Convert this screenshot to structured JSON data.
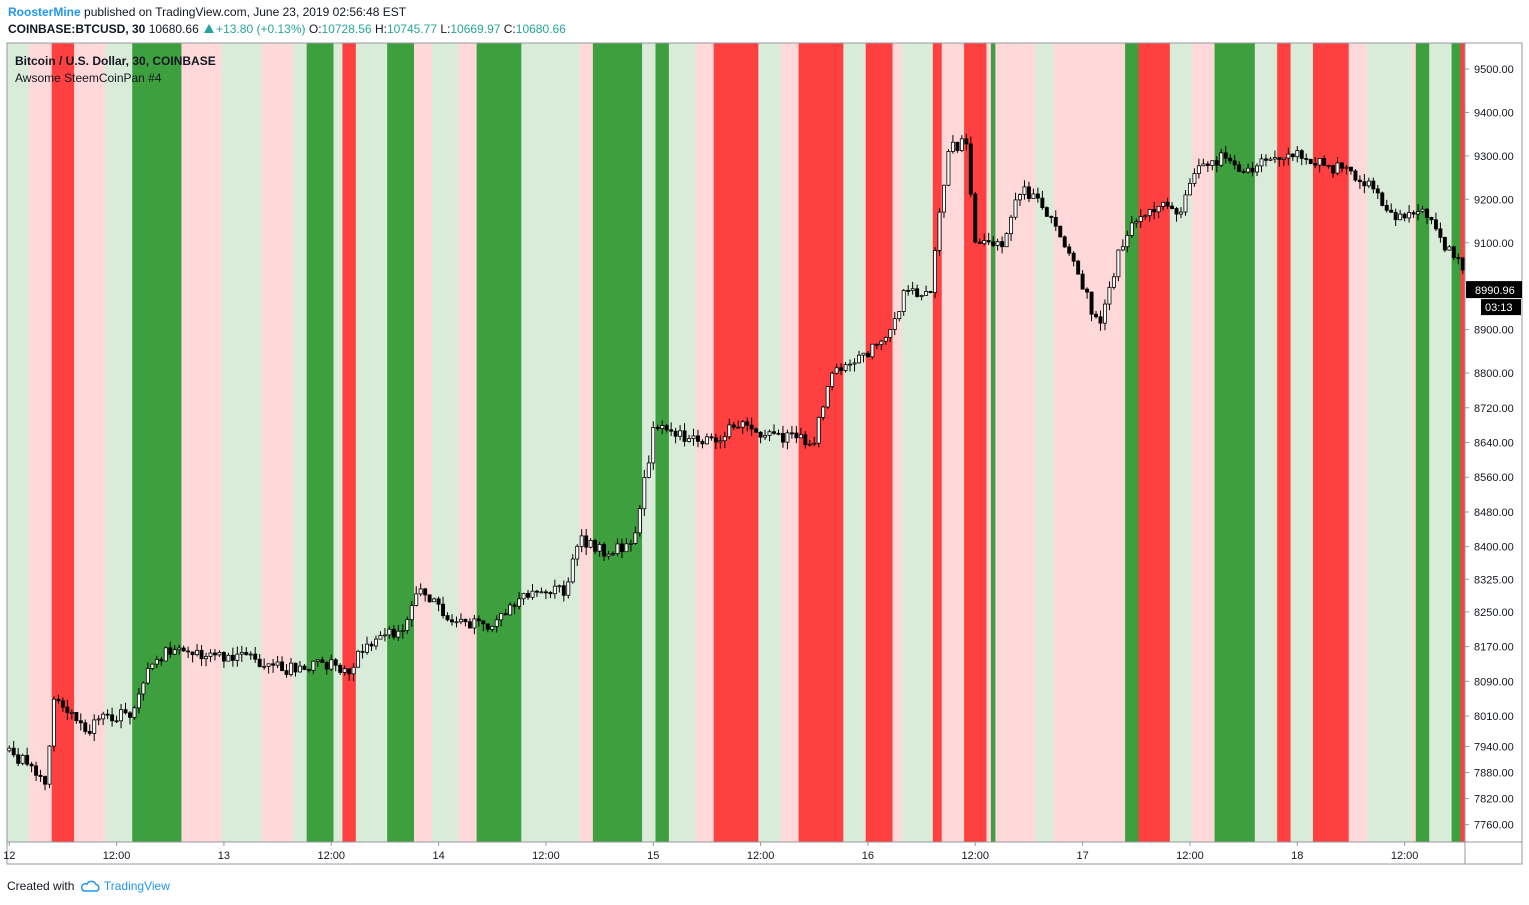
{
  "header": {
    "author": "RoosterMine",
    "published_text": "published on TradingView.com, June 23, 2019 02:56:48 EST",
    "symbol": "COINBASE:BTCUSD, 30",
    "last": "10680.66",
    "change": "+13.80 (+0.13%)",
    "o_label": "O:",
    "o_value": "10728.56",
    "h_label": "H:",
    "h_value": "10745.77",
    "l_label": "L:",
    "l_value": "10669.97",
    "c_label": "C:",
    "c_value": "10680.66"
  },
  "legend": {
    "title": "Bitcoin / U.S. Dollar, 30, COINBASE",
    "indicator": "Awsome SteemCoinPan #4"
  },
  "footer": {
    "created_with": "Created with",
    "brand": "TradingView"
  },
  "colors": {
    "strong_bull": "#3e9f3e",
    "weak_bull": "#d9ecd9",
    "strong_bear": "#ff4040",
    "weak_bear": "#ffd9d9",
    "candle": "#000000",
    "last_price_bg": "#000000"
  },
  "price_label": {
    "value": "8990.96",
    "countdown": "03:13"
  },
  "chart_data": {
    "type": "candlestick",
    "symbol": "BTCUSD",
    "timeframe": "30",
    "yticks": [
      "9500.00",
      "9400.00",
      "9300.00",
      "9200.00",
      "9100.00",
      "8900.00",
      "8800.00",
      "8720.00",
      "8640.00",
      "8560.00",
      "8480.00",
      "8400.00",
      "8325.00",
      "8250.00",
      "8170.00",
      "8090.00",
      "8010.00",
      "7940.00",
      "7880.00",
      "7820.00",
      "7760.00"
    ],
    "xticks": [
      {
        "label": "12",
        "bar": 0
      },
      {
        "label": "12:00",
        "bar": 24
      },
      {
        "label": "13",
        "bar": 48
      },
      {
        "label": "12:00",
        "bar": 72
      },
      {
        "label": "14",
        "bar": 96
      },
      {
        "label": "12:00",
        "bar": 120
      },
      {
        "label": "15",
        "bar": 144
      },
      {
        "label": "12:00",
        "bar": 168
      },
      {
        "label": "16",
        "bar": 192
      },
      {
        "label": "12:00",
        "bar": 216
      },
      {
        "label": "17",
        "bar": 240
      },
      {
        "label": "12:00",
        "bar": 264
      },
      {
        "label": "18",
        "bar": 288
      },
      {
        "label": "12:00",
        "bar": 312
      }
    ],
    "bar_count": 326,
    "price_path": [
      [
        0,
        7930
      ],
      [
        6,
        7880
      ],
      [
        8,
        7860
      ],
      [
        10,
        8050
      ],
      [
        18,
        7980
      ],
      [
        22,
        8010
      ],
      [
        28,
        8020
      ],
      [
        32,
        8140
      ],
      [
        36,
        8160
      ],
      [
        44,
        8150
      ],
      [
        52,
        8150
      ],
      [
        62,
        8120
      ],
      [
        72,
        8130
      ],
      [
        76,
        8120
      ],
      [
        80,
        8180
      ],
      [
        88,
        8210
      ],
      [
        92,
        8300
      ],
      [
        100,
        8220
      ],
      [
        108,
        8220
      ],
      [
        112,
        8270
      ],
      [
        120,
        8300
      ],
      [
        124,
        8300
      ],
      [
        128,
        8420
      ],
      [
        134,
        8380
      ],
      [
        140,
        8420
      ],
      [
        144,
        8670
      ],
      [
        152,
        8650
      ],
      [
        158,
        8650
      ],
      [
        162,
        8680
      ],
      [
        170,
        8660
      ],
      [
        176,
        8650
      ],
      [
        180,
        8650
      ],
      [
        184,
        8800
      ],
      [
        190,
        8840
      ],
      [
        196,
        8870
      ],
      [
        200,
        8980
      ],
      [
        206,
        9000
      ],
      [
        210,
        9320
      ],
      [
        214,
        9330
      ],
      [
        216,
        9100
      ],
      [
        222,
        9100
      ],
      [
        226,
        9220
      ],
      [
        230,
        9200
      ],
      [
        236,
        9100
      ],
      [
        240,
        9000
      ],
      [
        244,
        8900
      ],
      [
        248,
        9080
      ],
      [
        252,
        9150
      ],
      [
        256,
        9180
      ],
      [
        262,
        9180
      ],
      [
        266,
        9280
      ],
      [
        272,
        9300
      ],
      [
        276,
        9250
      ],
      [
        282,
        9300
      ],
      [
        288,
        9300
      ],
      [
        294,
        9280
      ],
      [
        300,
        9260
      ],
      [
        304,
        9230
      ],
      [
        310,
        9150
      ],
      [
        316,
        9180
      ],
      [
        320,
        9100
      ],
      [
        326,
        9030
      ]
    ],
    "ylim": [
      7720,
      9560
    ],
    "background_bands": "red = bear, green = bull"
  }
}
